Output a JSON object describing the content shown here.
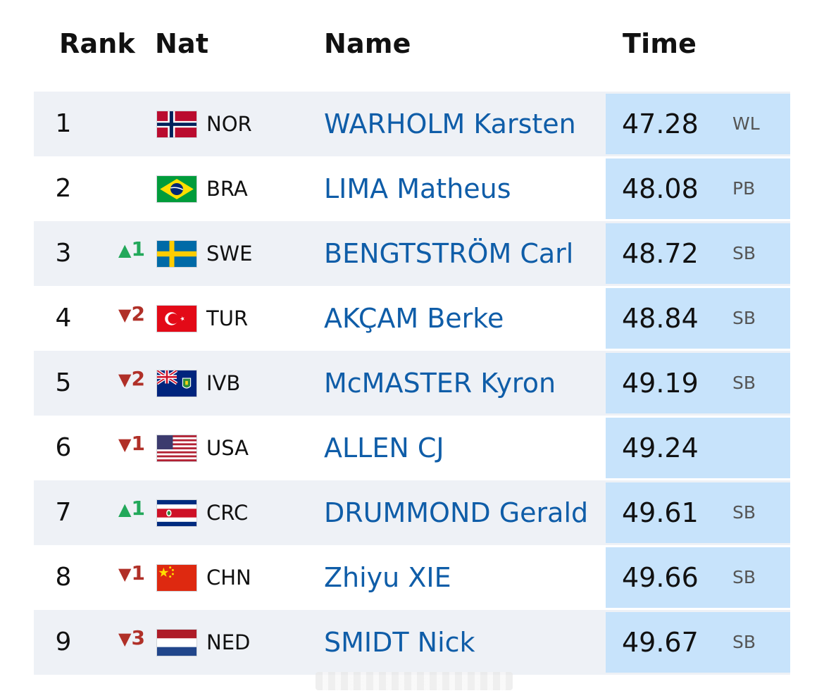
{
  "header": {
    "rank": "Rank",
    "nat": "Nat",
    "name": "Name",
    "time": "Time"
  },
  "colors": {
    "name_link": "#0f5da8",
    "time_cell": "#c7e3fb",
    "row_alt": "#eef1f6",
    "up": "#22a85a",
    "down": "#b03028"
  },
  "rows": [
    {
      "rank": "1",
      "move": "",
      "direction": "none",
      "flag": "norway-flag-icon",
      "code": "NOR",
      "name": "WARHOLM Karsten",
      "time": "47.28",
      "note": "WL"
    },
    {
      "rank": "2",
      "move": "",
      "direction": "none",
      "flag": "brazil-flag-icon",
      "code": "BRA",
      "name": "LIMA Matheus",
      "time": "48.08",
      "note": "PB"
    },
    {
      "rank": "3",
      "move": "1",
      "direction": "up",
      "flag": "sweden-flag-icon",
      "code": "SWE",
      "name": "BENGTSTRÖM Carl",
      "time": "48.72",
      "note": "SB"
    },
    {
      "rank": "4",
      "move": "2",
      "direction": "down",
      "flag": "turkey-flag-icon",
      "code": "TUR",
      "name": "AKÇAM Berke",
      "time": "48.84",
      "note": "SB"
    },
    {
      "rank": "5",
      "move": "2",
      "direction": "down",
      "flag": "virgin-islands-flag-icon",
      "code": "IVB",
      "name": "McMASTER Kyron",
      "time": "49.19",
      "note": "SB"
    },
    {
      "rank": "6",
      "move": "1",
      "direction": "down",
      "flag": "usa-flag-icon",
      "code": "USA",
      "name": "ALLEN CJ",
      "time": "49.24",
      "note": ""
    },
    {
      "rank": "7",
      "move": "1",
      "direction": "up",
      "flag": "costa-rica-flag-icon",
      "code": "CRC",
      "name": "DRUMMOND Gerald",
      "time": "49.61",
      "note": "SB"
    },
    {
      "rank": "8",
      "move": "1",
      "direction": "down",
      "flag": "china-flag-icon",
      "code": "CHN",
      "name": "Zhiyu XIE",
      "time": "49.66",
      "note": "SB"
    },
    {
      "rank": "9",
      "move": "3",
      "direction": "down",
      "flag": "netherlands-flag-icon",
      "code": "NED",
      "name": "SMIDT Nick",
      "time": "49.67",
      "note": "SB"
    }
  ]
}
